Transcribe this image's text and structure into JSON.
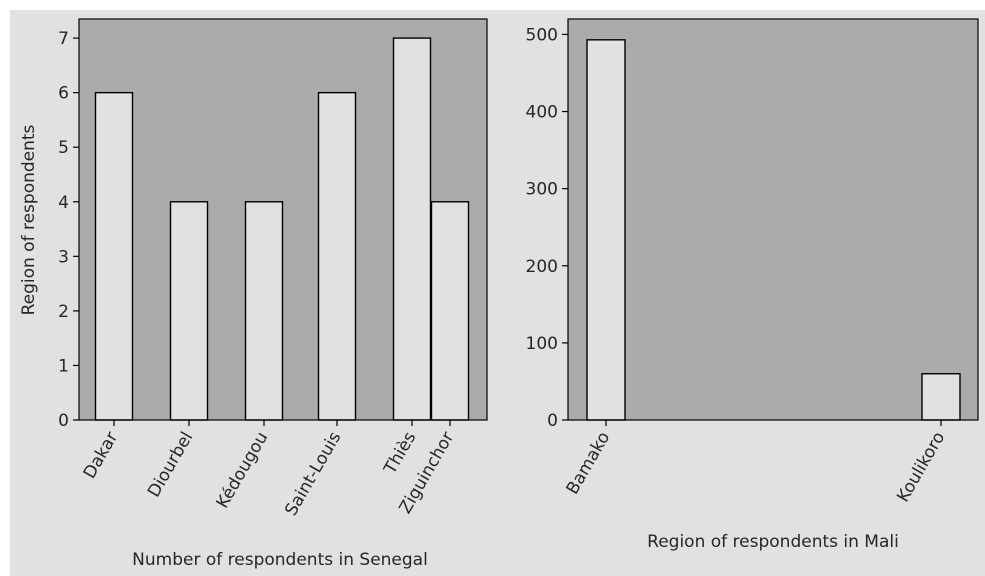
{
  "chart_data": [
    {
      "type": "bar",
      "categories": [
        "Dakar",
        "Diourbel",
        "Kédougou",
        "Saint-Louis",
        "Thiès",
        "Ziguinchor"
      ],
      "values": [
        6,
        4,
        4,
        6,
        7,
        4
      ],
      "xlabel": "Number of respondents in Senegal",
      "ylabel": "Region of respondents",
      "ylim": [
        0,
        7.35
      ],
      "yticks": [
        0,
        1,
        2,
        3,
        4,
        5,
        6,
        7
      ],
      "grid": false,
      "plot_bg": "#ababab",
      "bar_color": "#e1e1e1"
    },
    {
      "type": "bar",
      "categories": [
        "Bamako",
        "Koulikoro"
      ],
      "values": [
        493,
        60
      ],
      "xlabel": "Region of respondents in Mali",
      "ylabel": "",
      "ylim": [
        0,
        520
      ],
      "yticks": [
        0,
        100,
        200,
        300,
        400,
        500
      ],
      "grid": false,
      "plot_bg": "#ababab",
      "bar_color": "#e1e1e1"
    }
  ],
  "figure_bg": "#e1e1e1",
  "edge_color": "#000000"
}
